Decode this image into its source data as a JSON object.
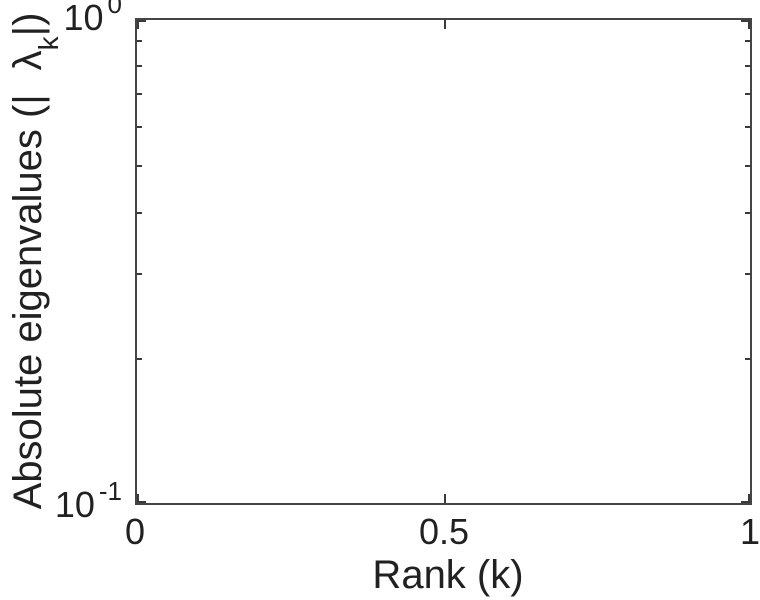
{
  "figure": {
    "background_color": "#ffffff",
    "axis_color": "#454545",
    "tick_color": "#3a3a3a",
    "text_color": "#212121"
  },
  "chart_data": {
    "type": "line",
    "title": "",
    "xlabel": "Rank (k)",
    "ylabel": {
      "text": "Absolute eigenvalues (| λk|)",
      "prefix": "Absolute eigenvalues (|",
      "lambda": "λ",
      "lambda_sub": "k",
      "suffix": "|)"
    },
    "x_scale": "linear",
    "y_scale": "log",
    "xlim": [
      0,
      1
    ],
    "ylim": [
      0.1,
      1
    ],
    "x_ticks": [
      {
        "value": 0,
        "label": "0"
      },
      {
        "value": 0.5,
        "label": "0.5"
      },
      {
        "value": 1,
        "label": "1"
      }
    ],
    "y_ticks": [
      {
        "value": 1.0,
        "base": "10",
        "exp": "0"
      },
      {
        "value": 0.1,
        "base": "10",
        "exp": "-1"
      }
    ],
    "y_minor_ticks": [
      0.9,
      0.8,
      0.7,
      0.6,
      0.5,
      0.4,
      0.3,
      0.2
    ],
    "grid": false,
    "legend": false,
    "box": true,
    "series": []
  }
}
